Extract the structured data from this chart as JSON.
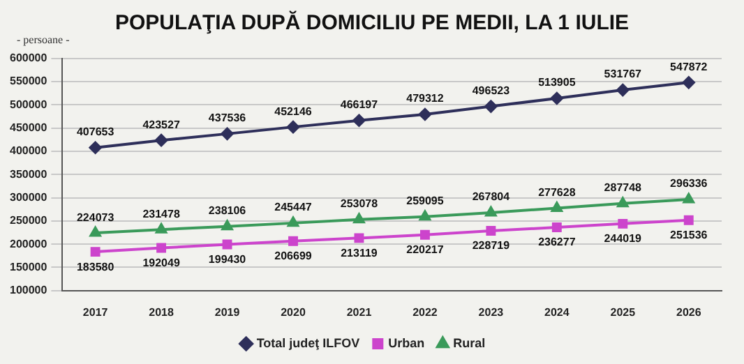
{
  "chart_data": {
    "type": "line",
    "title": "POPULAŢIA DUPĂ DOMICILIU PE MEDII, LA 1 IULIE",
    "ylabel": "- persoane -",
    "categories": [
      "2017",
      "2018",
      "2019",
      "2020",
      "2021",
      "2022",
      "2023",
      "2024",
      "2025",
      "2026"
    ],
    "series": [
      {
        "name": "Total judeţ ILFOV",
        "color": "#2e2f5a",
        "marker": "diamond",
        "values": [
          407653,
          423527,
          437536,
          452146,
          466197,
          479312,
          496523,
          513905,
          531767,
          547872
        ]
      },
      {
        "name": "Urban",
        "color": "#cc44cc",
        "marker": "square",
        "values": [
          183580,
          192049,
          199430,
          206699,
          213119,
          220217,
          228719,
          236277,
          244019,
          251536
        ]
      },
      {
        "name": "Rural",
        "color": "#3a9a5a",
        "marker": "triangle",
        "values": [
          224073,
          231478,
          238106,
          245447,
          253078,
          259095,
          267804,
          277628,
          287748,
          296336
        ]
      }
    ],
    "ylim": [
      100000,
      600000
    ],
    "yticks": [
      100000,
      150000,
      200000,
      250000,
      300000,
      350000,
      400000,
      450000,
      500000,
      550000,
      600000
    ],
    "grid": "y",
    "legend": "bottom",
    "data_labels": true
  }
}
